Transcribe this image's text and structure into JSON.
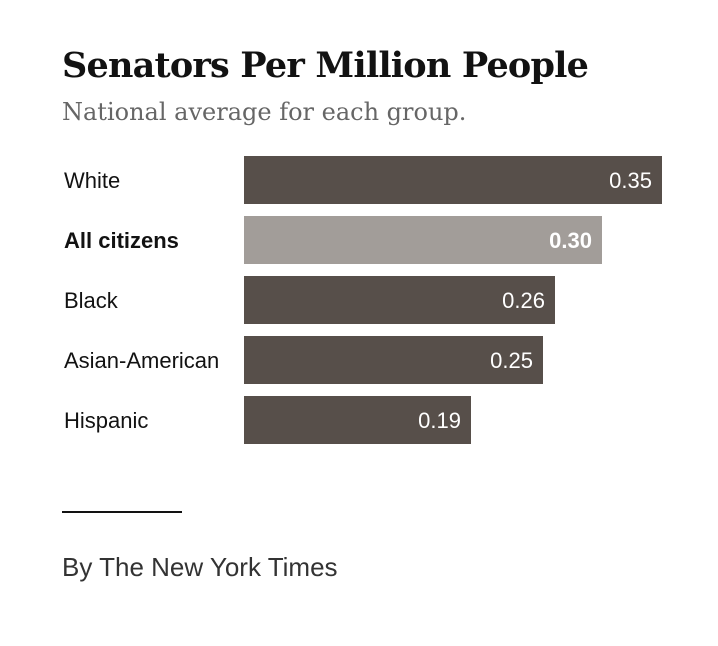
{
  "chart_data": {
    "type": "bar",
    "orientation": "horizontal",
    "title": "Senators Per Million People",
    "subtitle": "National average for each group.",
    "categories": [
      "White",
      "All citizens",
      "Black",
      "Asian-American",
      "Hispanic"
    ],
    "values": [
      0.35,
      0.3,
      0.26,
      0.25,
      0.19
    ],
    "value_labels": [
      "0.35",
      "0.30",
      "0.26",
      "0.25",
      "0.19"
    ],
    "highlighted_category": "All citizens",
    "xlim": [
      0,
      0.35
    ],
    "grid": false,
    "xlabel": "",
    "ylabel": ""
  },
  "colors": {
    "bar": "#574f4a",
    "bar_highlight": "#a29d99",
    "label_text": "#121212",
    "value_text": "#ffffff"
  },
  "credit": {
    "byline": "By The New York Times"
  }
}
